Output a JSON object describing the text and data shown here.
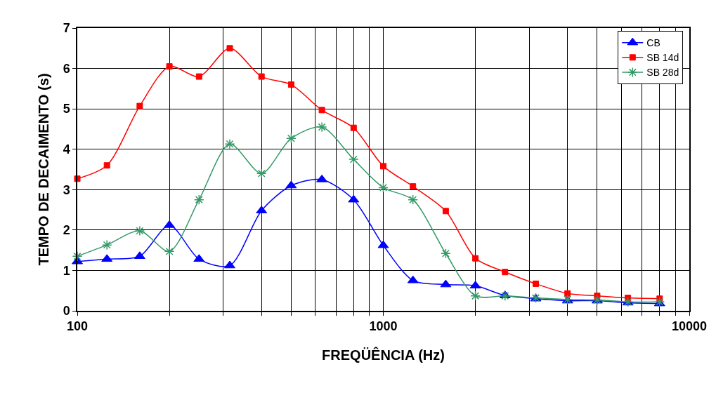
{
  "chart_data": {
    "type": "line",
    "xlabel": "FREQÜÊNCIA (Hz)",
    "ylabel": "TEMPO DE DECAIMENTO (s)",
    "x": [
      100,
      125,
      160,
      200,
      250,
      315,
      400,
      500,
      630,
      800,
      1000,
      1250,
      1600,
      2000,
      2500,
      3150,
      4000,
      5000,
      6300,
      8000
    ],
    "series": [
      {
        "name": "CB",
        "color": "#0000ff",
        "marker": "triangle",
        "values": [
          1.22,
          1.28,
          1.35,
          2.12,
          1.28,
          1.12,
          2.48,
          3.1,
          3.25,
          2.75,
          1.62,
          0.75,
          0.65,
          0.62,
          0.38,
          0.3,
          0.25,
          0.25,
          0.2,
          0.18
        ]
      },
      {
        "name": "SB 14d",
        "color": "#ff0000",
        "marker": "square",
        "values": [
          3.27,
          3.6,
          5.07,
          6.05,
          5.8,
          6.5,
          5.8,
          5.6,
          4.97,
          4.53,
          3.58,
          3.08,
          2.47,
          1.3,
          0.96,
          0.67,
          0.43,
          0.37,
          0.32,
          0.3
        ]
      },
      {
        "name": "SB 28d",
        "color": "#339966",
        "marker": "cross",
        "values": [
          1.35,
          1.63,
          1.98,
          1.47,
          2.75,
          4.13,
          3.4,
          4.27,
          4.55,
          3.75,
          3.05,
          2.75,
          1.42,
          0.37,
          0.37,
          0.32,
          0.28,
          0.27,
          0.22,
          0.22
        ]
      }
    ],
    "log": "x",
    "xlim": [
      100,
      10000
    ],
    "xticks": [
      100,
      {
        "value": 200,
        "label": null
      },
      {
        "value": 300,
        "label": null
      },
      {
        "value": 400,
        "label": null
      },
      {
        "value": 500,
        "label": null
      },
      {
        "value": 600,
        "label": null
      },
      {
        "value": 700,
        "label": null
      },
      {
        "value": 800,
        "label": null
      },
      {
        "value": 900,
        "label": null
      },
      1000,
      {
        "value": 2000,
        "label": null
      },
      {
        "value": 3000,
        "label": null
      },
      {
        "value": 4000,
        "label": null
      },
      {
        "value": 5000,
        "label": null
      },
      {
        "value": 6000,
        "label": null
      },
      {
        "value": 7000,
        "label": null
      },
      {
        "value": 8000,
        "label": null
      },
      {
        "value": 9000,
        "label": null
      },
      10000
    ],
    "ylim": [
      0,
      7
    ],
    "yticks": [
      0,
      1,
      2,
      3,
      4,
      5,
      6,
      7
    ],
    "grid": true,
    "legend": "top right",
    "line_style": "solid"
  }
}
